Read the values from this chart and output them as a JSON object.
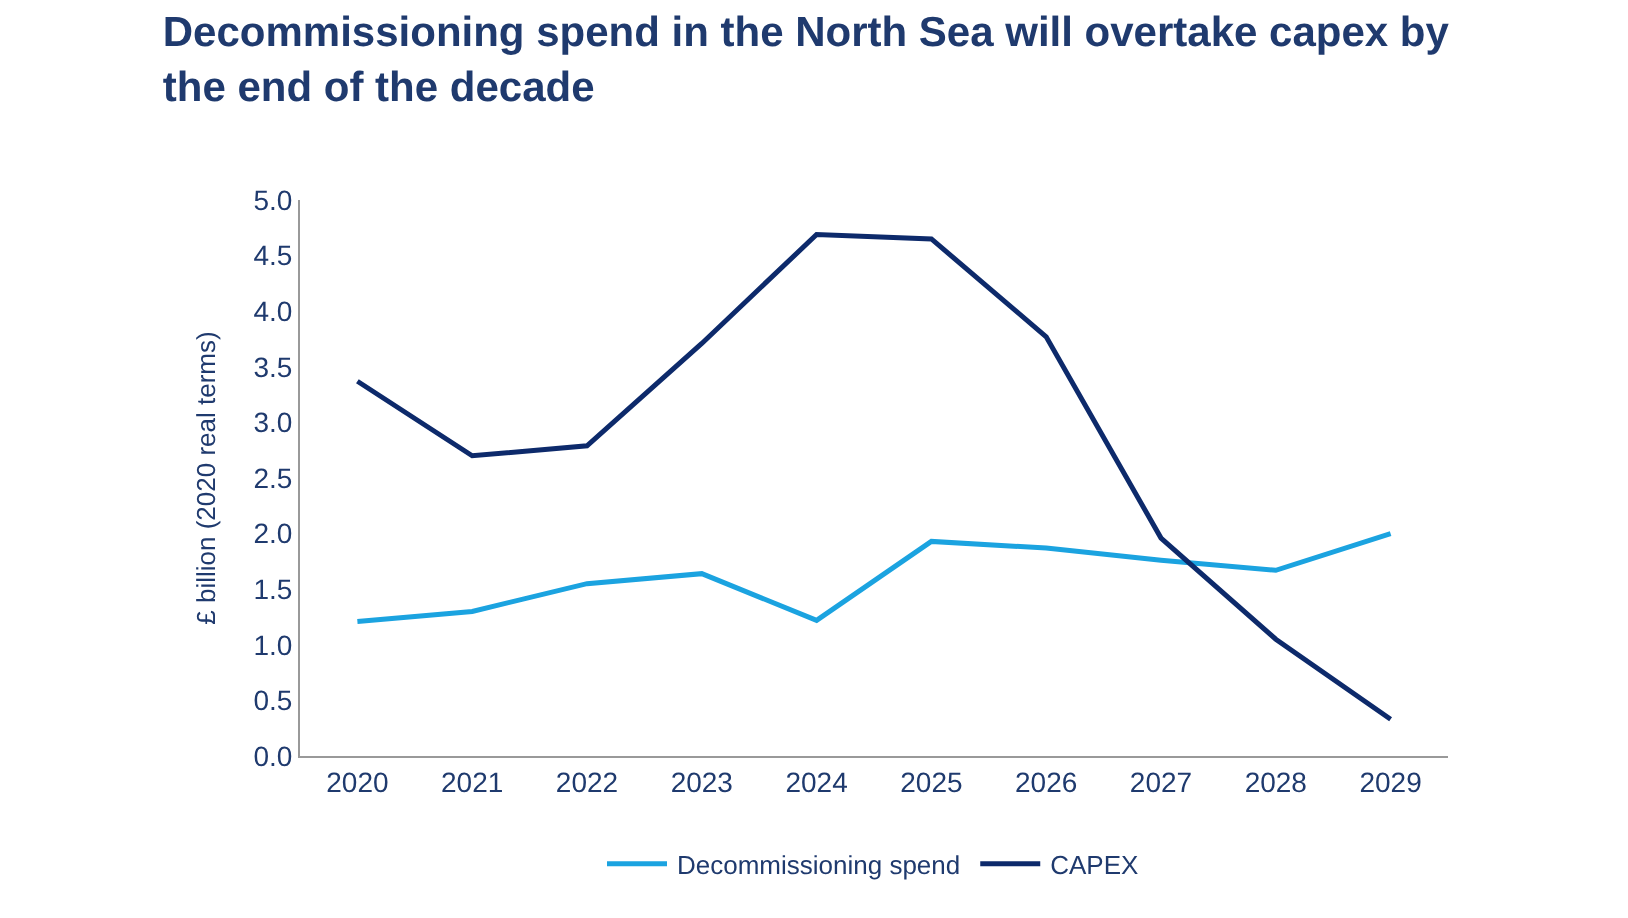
{
  "chart_data": {
    "type": "line",
    "title": "Decommissioning spend in the North Sea will overtake capex by the end of the decade",
    "ylabel": "£ billion (2020 real terms)",
    "categories": [
      "2020",
      "2021",
      "2022",
      "2023",
      "2024",
      "2025",
      "2026",
      "2027",
      "2028",
      "2029"
    ],
    "series": [
      {
        "name": "Decommissioning spend",
        "color": "#1ba3e0",
        "values": [
          1.21,
          1.3,
          1.55,
          1.64,
          1.22,
          1.93,
          1.87,
          1.76,
          1.67,
          2.0
        ]
      },
      {
        "name": "CAPEX",
        "color": "#0d2a6b",
        "values": [
          3.37,
          2.7,
          2.79,
          3.71,
          4.69,
          4.65,
          3.77,
          1.96,
          1.05,
          0.33
        ]
      }
    ],
    "ylim": [
      0,
      5
    ],
    "yticks": [
      {
        "value": 0,
        "label": "0.0"
      },
      {
        "value": 0.5,
        "label": "0.5"
      },
      {
        "value": 1,
        "label": "1.0"
      },
      {
        "value": 1.5,
        "label": "1.5"
      },
      {
        "value": 2,
        "label": "2.0"
      },
      {
        "value": 2.5,
        "label": "2.5"
      },
      {
        "value": 3,
        "label": "3.0"
      },
      {
        "value": 3.5,
        "label": "3.5"
      },
      {
        "value": 4,
        "label": "4.0"
      },
      {
        "value": 4.5,
        "label": "4.5"
      },
      {
        "value": 5,
        "label": "5.0"
      }
    ],
    "legend": "bottom",
    "marker": "none",
    "line_style": "solid"
  }
}
